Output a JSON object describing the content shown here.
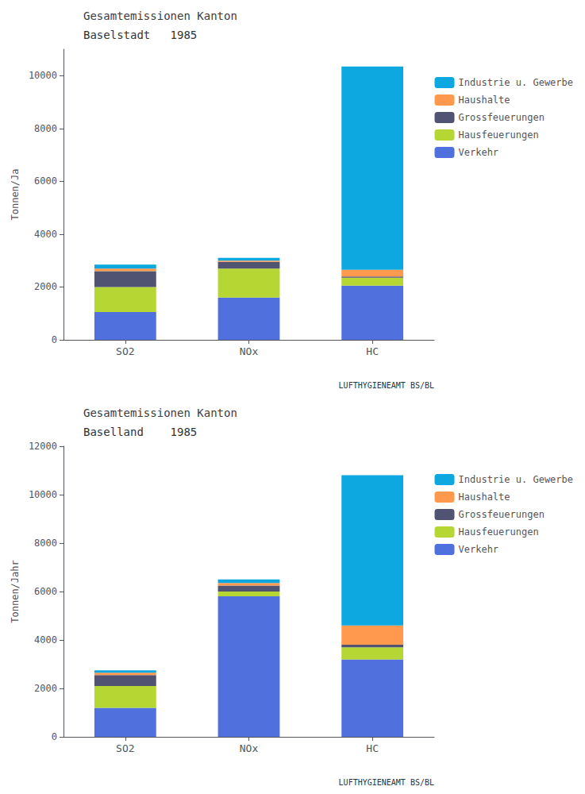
{
  "chart_data": [
    {
      "type": "bar",
      "stacked": true,
      "title": "Gesamtemissionen Kanton",
      "subtitle": "Baselstadt   1985",
      "ylabel": "Tonnen/Ja",
      "categories": [
        "SO2",
        "NOx",
        "HC"
      ],
      "series": [
        {
          "name": "Verkehr",
          "values": [
            1050,
            1600,
            2050
          ]
        },
        {
          "name": "Hausfeuerungen",
          "values": [
            950,
            1100,
            300
          ]
        },
        {
          "name": "Grossfeuerungen",
          "values": [
            600,
            250,
            50
          ]
        },
        {
          "name": "Haushalte",
          "values": [
            100,
            50,
            250
          ]
        },
        {
          "name": "Industrie u. Gewerbe",
          "values": [
            150,
            100,
            7700
          ]
        }
      ],
      "ylim": [
        0,
        11000
      ],
      "yticks": [
        0,
        2000,
        4000,
        6000,
        8000,
        10000
      ],
      "grid": false,
      "legend": "right",
      "annotation": "LUFTHYGIENEAMT BS/BL"
    },
    {
      "type": "bar",
      "stacked": true,
      "title": "Gesamtemissionen Kanton",
      "subtitle": "Baselland    1985",
      "ylabel": "Tonnen/Jahr",
      "categories": [
        "SO2",
        "NOx",
        "HC"
      ],
      "series": [
        {
          "name": "Verkehr",
          "values": [
            1200,
            5800,
            3200
          ]
        },
        {
          "name": "Hausfeuerungen",
          "values": [
            900,
            200,
            500
          ]
        },
        {
          "name": "Grossfeuerungen",
          "values": [
            450,
            250,
            100
          ]
        },
        {
          "name": "Haushalte",
          "values": [
            100,
            100,
            800
          ]
        },
        {
          "name": "Industrie u. Gewerbe",
          "values": [
            100,
            150,
            6200
          ]
        }
      ],
      "ylim": [
        0,
        12000
      ],
      "yticks": [
        0,
        2000,
        4000,
        6000,
        8000,
        10000,
        12000
      ],
      "grid": false,
      "legend": "right",
      "annotation": "LUFTHYGIENEAMT BS/BL"
    }
  ]
}
